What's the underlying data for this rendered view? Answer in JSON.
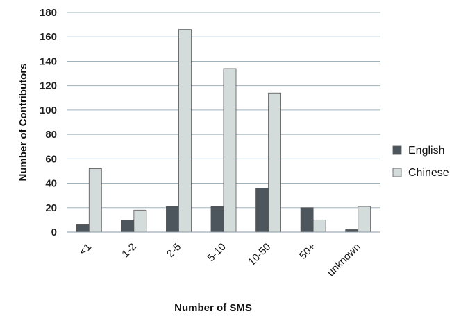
{
  "chart_data": {
    "type": "bar",
    "title": "",
    "xlabel": "Number of SMS",
    "ylabel": "Number of Contributors",
    "categories": [
      "<1",
      "1-2",
      "2-5",
      "5-10",
      "10-50",
      "50+",
      "unknown"
    ],
    "series": [
      {
        "name": "English",
        "values": [
          6,
          10,
          21,
          21,
          36,
          20,
          2
        ],
        "color": "#4d565d"
      },
      {
        "name": "Chinese",
        "values": [
          52,
          18,
          166,
          134,
          114,
          10,
          21
        ],
        "color": "#d4dbdb"
      }
    ],
    "ylim": [
      0,
      180
    ],
    "yticks": [
      0,
      20,
      40,
      60,
      80,
      100,
      120,
      140,
      160,
      180
    ],
    "grid": true,
    "legend_position": "right"
  }
}
